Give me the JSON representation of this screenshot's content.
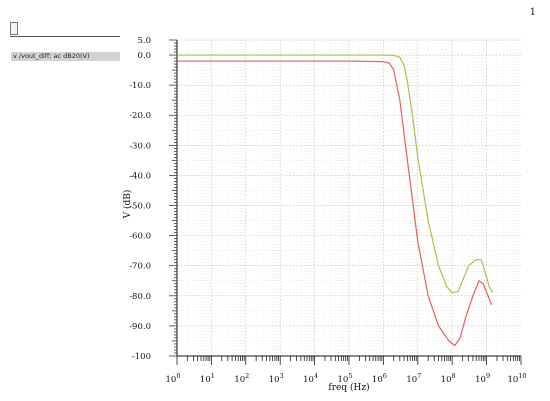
{
  "page_number": "1",
  "signal_label": "v /vout_diff; ac dB20(V)",
  "chart_data": {
    "type": "line",
    "xlabel": "freq (Hz)",
    "ylabel": "V (dB)",
    "xscale": "log",
    "xlim": [
      1,
      10000000000
    ],
    "ylim": [
      -100,
      5
    ],
    "y_ticks": [
      5,
      0,
      -10,
      -20,
      -30,
      -40,
      -50,
      -60,
      -70,
      -80,
      -90,
      -100
    ],
    "y_tick_labels": [
      "5.0",
      "0.0",
      "-10.0",
      "-20.0",
      "-30.0",
      "-40.0",
      "-50.0",
      "-60.0",
      "-70.0",
      "-80.0",
      "-90.0",
      "-100"
    ],
    "x_tick_labels": [
      {
        "base": "10",
        "exp": "0"
      },
      {
        "base": "10",
        "exp": "1"
      },
      {
        "base": "10",
        "exp": "2"
      },
      {
        "base": "10",
        "exp": "3"
      },
      {
        "base": "10",
        "exp": "4"
      },
      {
        "base": "10",
        "exp": "5"
      },
      {
        "base": "10",
        "exp": "6"
      },
      {
        "base": "10",
        "exp": "7"
      },
      {
        "base": "10",
        "exp": "8"
      },
      {
        "base": "10",
        "exp": "9"
      },
      {
        "base": "10",
        "exp": "10"
      }
    ],
    "grid": true,
    "legend": "none",
    "series": [
      {
        "color": "#a9c24a",
        "points": [
          [
            1,
            0.0
          ],
          [
            100000,
            0.0
          ],
          [
            1000000,
            0.0
          ],
          [
            2000000,
            -0.1
          ],
          [
            3000000,
            -0.7
          ],
          [
            4000000,
            -3.5
          ],
          [
            5000000,
            -9
          ],
          [
            7000000,
            -20
          ],
          [
            10000000,
            -34
          ],
          [
            20000000,
            -55
          ],
          [
            40000000,
            -70
          ],
          [
            70000000,
            -77
          ],
          [
            100000000,
            -79
          ],
          [
            150000000,
            -78.5
          ],
          [
            200000000,
            -75
          ],
          [
            300000000,
            -70
          ],
          [
            500000000,
            -68
          ],
          [
            700000000,
            -68
          ],
          [
            900000000,
            -72
          ],
          [
            1200000000,
            -77
          ],
          [
            1500000000,
            -79
          ]
        ]
      },
      {
        "color": "#e06060",
        "points": [
          [
            1,
            -2.0
          ],
          [
            100000,
            -2.0
          ],
          [
            1000000,
            -2.2
          ],
          [
            1500000,
            -2.7
          ],
          [
            2000000,
            -5
          ],
          [
            3000000,
            -15
          ],
          [
            5000000,
            -35
          ],
          [
            10000000,
            -62
          ],
          [
            20000000,
            -80
          ],
          [
            40000000,
            -90
          ],
          [
            80000000,
            -95
          ],
          [
            120000000,
            -96.5
          ],
          [
            170000000,
            -94
          ],
          [
            250000000,
            -87
          ],
          [
            400000000,
            -80
          ],
          [
            600000000,
            -75
          ],
          [
            800000000,
            -76
          ],
          [
            1100000000,
            -80
          ],
          [
            1400000000,
            -83
          ]
        ]
      }
    ]
  }
}
